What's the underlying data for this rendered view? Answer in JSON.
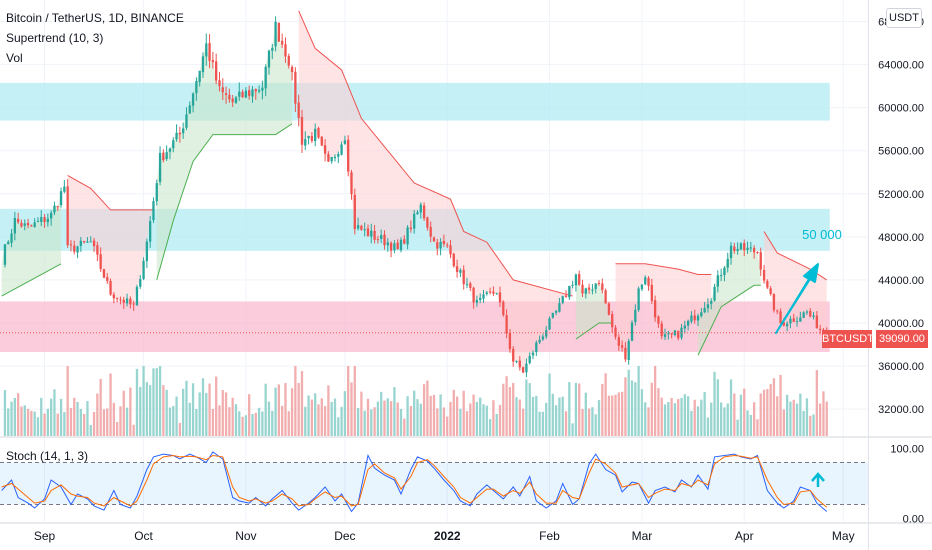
{
  "header": {
    "title": "Bitcoin / TetherUS, 1D, BINANCE",
    "indicator1": "Supertrend (10, 3)",
    "indicator2": "Vol",
    "currency_button": "USDT"
  },
  "price_tag": {
    "symbol": "BTCUSDT",
    "price": "39090.00"
  },
  "annotation": {
    "target_text": "50 000"
  },
  "colors": {
    "up": "#26a69a",
    "down": "#ef5350",
    "zone_blue": "#b2ebf2",
    "zone_red": "#f8bbd0",
    "supertrend_up": "#4caf50",
    "supertrend_down": "#ef5350",
    "stoch_k": "#2962ff",
    "stoch_d": "#ff6d00",
    "arrow": "#00bcd4"
  },
  "chart_data": [
    {
      "type": "candlestick",
      "title": "Bitcoin / TetherUS, 1D, BINANCE",
      "y_ticks": [
        "68000.00",
        "64000.00",
        "60000.00",
        "56000.00",
        "52000.00",
        "48000.00",
        "44000.00",
        "40000.00",
        "36000.00",
        "32000.00"
      ],
      "ylim": [
        29500,
        70000
      ],
      "x_ticks": [
        "Sep",
        "Oct",
        "Nov",
        "Dec",
        "2022",
        "Feb",
        "Mar",
        "Apr",
        "May"
      ],
      "x_tick_dates": [
        "2021-09-01",
        "2021-10-01",
        "2021-11-01",
        "2021-12-01",
        "2022-01-01",
        "2022-02-01",
        "2022-03-01",
        "2022-04-01",
        "2022-05-01"
      ],
      "date_range": [
        "2021-08-19",
        "2022-05-08"
      ],
      "keypoints": [
        [
          "2021-08-19",
          46000
        ],
        [
          "2021-08-23",
          49500
        ],
        [
          "2021-08-27",
          48800
        ],
        [
          "2021-09-03",
          50000
        ],
        [
          "2021-09-07",
          52700
        ],
        [
          "2021-09-08",
          46800
        ],
        [
          "2021-09-15",
          47500
        ],
        [
          "2021-09-21",
          42800
        ],
        [
          "2021-09-28",
          41500
        ],
        [
          "2021-10-02",
          47500
        ],
        [
          "2021-10-06",
          55300
        ],
        [
          "2021-10-12",
          57500
        ],
        [
          "2021-10-16",
          61500
        ],
        [
          "2021-10-20",
          65800
        ],
        [
          "2021-10-24",
          61500
        ],
        [
          "2021-10-28",
          60500
        ],
        [
          "2021-11-01",
          61300
        ],
        [
          "2021-11-06",
          62000
        ],
        [
          "2021-11-10",
          67500
        ],
        [
          "2021-11-14",
          64500
        ],
        [
          "2021-11-18",
          57000
        ],
        [
          "2021-11-22",
          57500
        ],
        [
          "2021-11-26",
          54500
        ],
        [
          "2021-12-01",
          57500
        ],
        [
          "2021-12-04",
          49000
        ],
        [
          "2021-12-10",
          48000
        ],
        [
          "2021-12-14",
          47500
        ],
        [
          "2021-12-17",
          46700
        ],
        [
          "2021-12-24",
          50800
        ],
        [
          "2021-12-28",
          47500
        ],
        [
          "2022-01-01",
          47000
        ],
        [
          "2022-01-05",
          44500
        ],
        [
          "2022-01-10",
          41800
        ],
        [
          "2022-01-16",
          43000
        ],
        [
          "2022-01-21",
          36500
        ],
        [
          "2022-01-24",
          35500
        ],
        [
          "2022-01-28",
          38000
        ],
        [
          "2022-02-04",
          41500
        ],
        [
          "2022-02-09",
          44500
        ],
        [
          "2022-02-11",
          42500
        ],
        [
          "2022-02-16",
          44000
        ],
        [
          "2022-02-21",
          38500
        ],
        [
          "2022-02-24",
          37000
        ],
        [
          "2022-02-28",
          43000
        ],
        [
          "2022-03-02",
          44500
        ],
        [
          "2022-03-07",
          38500
        ],
        [
          "2022-03-12",
          39000
        ],
        [
          "2022-03-18",
          41000
        ],
        [
          "2022-03-22",
          42500
        ],
        [
          "2022-03-28",
          47000
        ],
        [
          "2022-04-02",
          46800
        ],
        [
          "2022-04-05",
          46600
        ],
        [
          "2022-04-08",
          43000
        ],
        [
          "2022-04-12",
          40000
        ],
        [
          "2022-04-16",
          40400
        ],
        [
          "2022-04-20",
          41000
        ],
        [
          "2022-04-24",
          39500
        ],
        [
          "2022-04-26",
          39090
        ]
      ],
      "supertrend": [
        {
          "dir": "up",
          "points": [
            [
              "2021-08-19",
              42500
            ],
            [
              "2021-09-06",
              45500
            ]
          ]
        },
        {
          "dir": "down",
          "points": [
            [
              "2021-09-08",
              53700
            ],
            [
              "2021-09-15",
              52500
            ],
            [
              "2021-09-21",
              50500
            ],
            [
              "2021-10-04",
              50500
            ]
          ]
        },
        {
          "dir": "up",
          "points": [
            [
              "2021-10-05",
              44000
            ],
            [
              "2021-10-10",
              49500
            ],
            [
              "2021-10-16",
              55000
            ],
            [
              "2021-10-22",
              57500
            ],
            [
              "2021-11-10",
              57500
            ],
            [
              "2021-11-15",
              58500
            ]
          ]
        },
        {
          "dir": "down",
          "points": [
            [
              "2021-11-17",
              69000
            ],
            [
              "2021-11-22",
              65500
            ],
            [
              "2021-11-30",
              63500
            ],
            [
              "2021-12-06",
              59000
            ],
            [
              "2021-12-14",
              56000
            ],
            [
              "2021-12-22",
              53000
            ],
            [
              "2022-01-02",
              51500
            ],
            [
              "2022-01-06",
              48500
            ],
            [
              "2022-01-13",
              47500
            ],
            [
              "2022-01-21",
              44000
            ],
            [
              "2022-02-08",
              42500
            ]
          ]
        },
        {
          "dir": "up",
          "points": [
            [
              "2022-02-09",
              38500
            ],
            [
              "2022-02-16",
              40000
            ],
            [
              "2022-02-20",
              40000
            ]
          ]
        },
        {
          "dir": "down",
          "points": [
            [
              "2022-02-21",
              45500
            ],
            [
              "2022-03-02",
              45500
            ],
            [
              "2022-03-12",
              45000
            ],
            [
              "2022-03-18",
              44500
            ],
            [
              "2022-03-22",
              44500
            ]
          ]
        },
        {
          "dir": "up",
          "points": [
            [
              "2022-03-18",
              37000
            ],
            [
              "2022-03-25",
              41500
            ],
            [
              "2022-04-04",
              43500
            ],
            [
              "2022-04-06",
              43500
            ]
          ]
        },
        {
          "dir": "down",
          "points": [
            [
              "2022-04-07",
              48500
            ],
            [
              "2022-04-11",
              46500
            ],
            [
              "2022-04-21",
              45000
            ],
            [
              "2022-04-26",
              44000
            ]
          ]
        }
      ],
      "zones": [
        {
          "color": "blue",
          "y1": 58800,
          "y2": 62300,
          "x1": "2021-08-19",
          "x2": "2022-04-26"
        },
        {
          "color": "blue",
          "y1": 46700,
          "y2": 50600,
          "x1": "2021-08-19",
          "x2": "2022-04-26"
        },
        {
          "color": "red",
          "y1": 37300,
          "y2": 42000,
          "x1": "2021-08-19",
          "x2": "2022-04-26"
        }
      ],
      "current_price": 39090,
      "target_price": 50000
    },
    {
      "type": "line",
      "title": "Stoch (14, 1, 3)",
      "y_ticks": [
        "100.00",
        "0.00"
      ],
      "ylim": [
        -5,
        115
      ],
      "band": [
        20,
        80
      ],
      "series": [
        {
          "color": "blue",
          "values": [
            40,
            55,
            30,
            22,
            15,
            28,
            55,
            45,
            20,
            35,
            28,
            18,
            12,
            40,
            20,
            15,
            32,
            70,
            88,
            92,
            90,
            85,
            92,
            88,
            80,
            95,
            85,
            30,
            25,
            22,
            30,
            18,
            28,
            40,
            22,
            12,
            22,
            30,
            45,
            25,
            35,
            10,
            22,
            90,
            72,
            62,
            55,
            35,
            70,
            88,
            82,
            72,
            55,
            40,
            25,
            18,
            35,
            48,
            40,
            28,
            45,
            32,
            60,
            25,
            15,
            25,
            50,
            20,
            28,
            78,
            92,
            70,
            62,
            38,
            52,
            50,
            22,
            40,
            45,
            38,
            55,
            45,
            62,
            42,
            88,
            90,
            92,
            88,
            85,
            90,
            40,
            22,
            15,
            25,
            45,
            40,
            22,
            10
          ]
        },
        {
          "color": "orange",
          "values": [
            45,
            50,
            42,
            30,
            22,
            25,
            40,
            48,
            35,
            32,
            30,
            22,
            18,
            30,
            25,
            18,
            25,
            55,
            78,
            88,
            90,
            88,
            89,
            88,
            84,
            90,
            88,
            45,
            30,
            25,
            28,
            22,
            25,
            35,
            28,
            18,
            20,
            28,
            38,
            30,
            32,
            18,
            20,
            70,
            78,
            65,
            58,
            42,
            60,
            80,
            84,
            76,
            60,
            45,
            30,
            22,
            30,
            42,
            42,
            32,
            40,
            36,
            52,
            35,
            22,
            22,
            40,
            30,
            28,
            65,
            85,
            78,
            65,
            45,
            48,
            50,
            30,
            36,
            42,
            40,
            50,
            46,
            55,
            48,
            78,
            88,
            90,
            89,
            86,
            88,
            55,
            30,
            20,
            22,
            38,
            40,
            28,
            16
          ]
        }
      ]
    }
  ]
}
